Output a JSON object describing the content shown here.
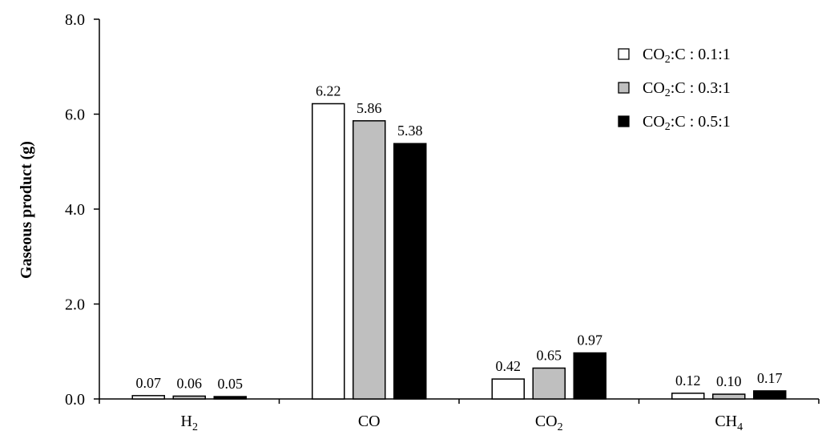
{
  "chart_data": {
    "type": "bar",
    "categories": [
      "H2",
      "CO",
      "CO2",
      "CH4"
    ],
    "category_labels": [
      {
        "base": "H",
        "sub": "2"
      },
      {
        "base": "CO",
        "sub": ""
      },
      {
        "base": "CO",
        "sub": "2"
      },
      {
        "base": "CH",
        "sub": "4"
      }
    ],
    "series": [
      {
        "name": "CO2:C : 0.1:1",
        "values": [
          0.07,
          6.22,
          0.42,
          0.12
        ],
        "color": "#ffffff",
        "legend": {
          "pre": "CO",
          "sub": "2",
          "post": ":C : 0.1:1"
        }
      },
      {
        "name": "CO2:C : 0.3:1",
        "values": [
          0.06,
          5.86,
          0.65,
          0.1
        ],
        "color": "#bfbfbf",
        "legend": {
          "pre": "CO",
          "sub": "2",
          "post": ":C : 0.3:1"
        }
      },
      {
        "name": "CO2:C : 0.5:1",
        "values": [
          0.05,
          5.38,
          0.97,
          0.17
        ],
        "color": "#000000",
        "legend": {
          "pre": "CO",
          "sub": "2",
          "post": ":C : 0.5:1"
        }
      }
    ],
    "data_labels": [
      [
        "0.07",
        "6.22",
        "0.42",
        "0.12"
      ],
      [
        "0.06",
        "5.86",
        "0.65",
        "0.10"
      ],
      [
        "0.05",
        "5.38",
        "0.97",
        "0.17"
      ]
    ],
    "y_ticks": [
      "0.0",
      "2.0",
      "4.0",
      "6.0",
      "8.0"
    ],
    "ylim": [
      0,
      8
    ],
    "ylabel": "Gaseous product (g)",
    "xlabel": "",
    "title": "",
    "grid": false,
    "legend_position": "top-right"
  }
}
